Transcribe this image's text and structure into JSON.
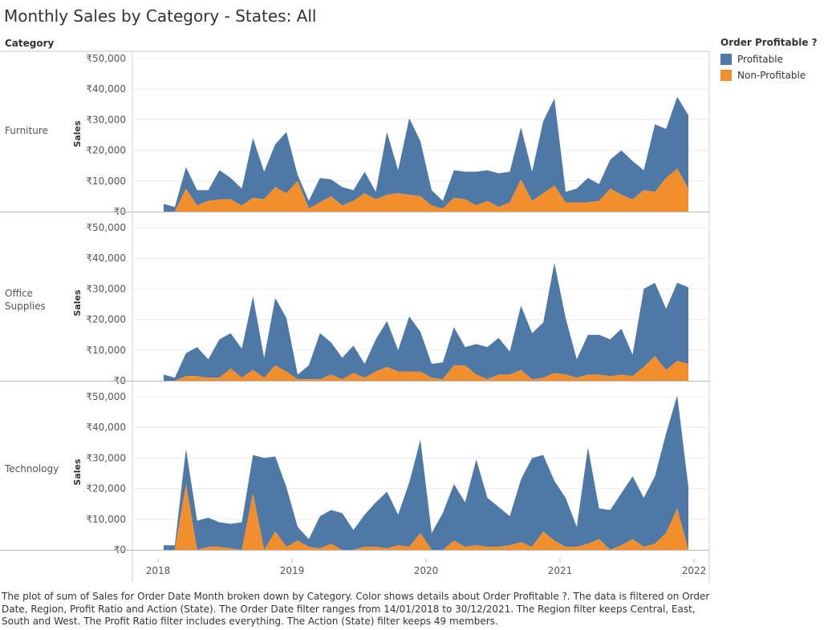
{
  "title": "Monthly Sales by Category - States: All",
  "category_header": "Category",
  "legend": {
    "title": "Order Profitable ?",
    "items": [
      {
        "label": "Profitable",
        "color": "#4e79a7"
      },
      {
        "label": "Non-Profitable",
        "color": "#f28e2b"
      }
    ]
  },
  "footnote": "The plot of sum of Sales for Order Date Month broken down by Category.  Color shows details about Order Profitable ?. The data is filtered on Order Date, Region, Profit Ratio and Action (State). The Order Date filter ranges from 14/01/2018 to 30/12/2021. The Region filter keeps Central, East, South and West. The Profit Ratio filter includes everything. The Action (State) filter keeps 49 members.",
  "chart_data": {
    "type": "area",
    "stacked": true,
    "ylabel": "Sales",
    "ylim": [
      0,
      50000
    ],
    "yticks": [
      0,
      10000,
      20000,
      30000,
      40000,
      50000
    ],
    "ytick_labels": [
      "₹0",
      "₹10,000",
      "₹20,000",
      "₹30,000",
      "₹40,000",
      "₹50,000"
    ],
    "x_start": "2018-01",
    "x_end": "2021-12",
    "xtick_labels": [
      "2018",
      "2019",
      "2020",
      "2021",
      "2022"
    ],
    "facets": [
      {
        "category": "Furniture",
        "series": [
          {
            "name": "Profitable",
            "values": [
              2500,
              1500,
              7000,
              5000,
              3500,
              9500,
              7000,
              5500,
              19500,
              9000,
              14000,
              20000,
              2000,
              2500,
              8000,
              5500,
              6000,
              3500,
              7000,
              2500,
              20500,
              7500,
              25000,
              18000,
              5000,
              2500,
              9000,
              9000,
              11000,
              10000,
              11000,
              10000,
              17000,
              9500,
              23500,
              28500,
              3500,
              4500,
              8000,
              5500,
              9500,
              14500,
              12500,
              6500,
              22000,
              16000,
              23500,
              24000
            ]
          },
          {
            "name": "Non-Profitable",
            "values": [
              0,
              0,
              7500,
              2000,
              3500,
              4000,
              4000,
              2000,
              4500,
              4000,
              8000,
              6000,
              10000,
              1000,
              3000,
              5000,
              2000,
              3500,
              6000,
              4000,
              5500,
              6000,
              5500,
              5000,
              2000,
              1000,
              4500,
              4000,
              2000,
              3500,
              1500,
              3000,
              10500,
              3500,
              6000,
              8500,
              3000,
              3000,
              3000,
              3500,
              7500,
              5500,
              4000,
              7000,
              6500,
              11000,
              14000,
              7500
            ]
          }
        ]
      },
      {
        "category": "Office\nSupplies",
        "series": [
          {
            "name": "Profitable",
            "values": [
              2000,
              1000,
              7500,
              9500,
              6000,
              12500,
              11500,
              9500,
              24000,
              6500,
              22000,
              17500,
              1500,
              4500,
              15000,
              10500,
              7000,
              9000,
              4500,
              10500,
              15000,
              7000,
              18000,
              13000,
              4500,
              5500,
              12500,
              6000,
              10000,
              10500,
              12000,
              7500,
              21000,
              15000,
              18000,
              36000,
              18500,
              6000,
              13000,
              13000,
              12000,
              15000,
              7000,
              25500,
              24000,
              20000,
              25500,
              25000
            ]
          },
          {
            "name": "Non-Profitable",
            "values": [
              0,
              0,
              1500,
              1500,
              1000,
              1000,
              4000,
              1000,
              3500,
              1000,
              5000,
              3000,
              500,
              500,
              500,
              2000,
              500,
              2500,
              1000,
              3000,
              4500,
              3000,
              3000,
              3000,
              1000,
              500,
              5000,
              5000,
              2000,
              500,
              2000,
              2000,
              3500,
              500,
              1000,
              2500,
              2000,
              1000,
              2000,
              2000,
              1500,
              2000,
              1500,
              4500,
              8000,
              3500,
              6500,
              5500
            ]
          }
        ]
      },
      {
        "category": "Technology",
        "series": [
          {
            "name": "Profitable",
            "values": [
              1500,
              1500,
              11500,
              9500,
              9500,
              8000,
              8000,
              9000,
              12500,
              30000,
              24500,
              19500,
              4500,
              2500,
              10500,
              11000,
              12000,
              6500,
              10500,
              14500,
              18500,
              10000,
              21000,
              30500,
              5500,
              12000,
              18500,
              14500,
              28000,
              16000,
              13000,
              9500,
              20500,
              29000,
              25000,
              19500,
              16000,
              6500,
              31500,
              10000,
              13000,
              17000,
              20500,
              16000,
              22000,
              32500,
              37000,
              20500
            ]
          },
          {
            "name": "Non-Profitable",
            "values": [
              0,
              0,
              21500,
              0,
              1000,
              1000,
              500,
              0,
              18500,
              0,
              6000,
              1000,
              3000,
              1000,
              500,
              2000,
              0,
              0,
              1000,
              1000,
              500,
              1500,
              1000,
              5500,
              0,
              0,
              3000,
              1000,
              1500,
              1000,
              1000,
              1500,
              2500,
              1000,
              6000,
              3000,
              1000,
              1000,
              2000,
              3500,
              0,
              1500,
              3500,
              1000,
              2000,
              5500,
              13500,
              0
            ]
          }
        ]
      }
    ]
  }
}
